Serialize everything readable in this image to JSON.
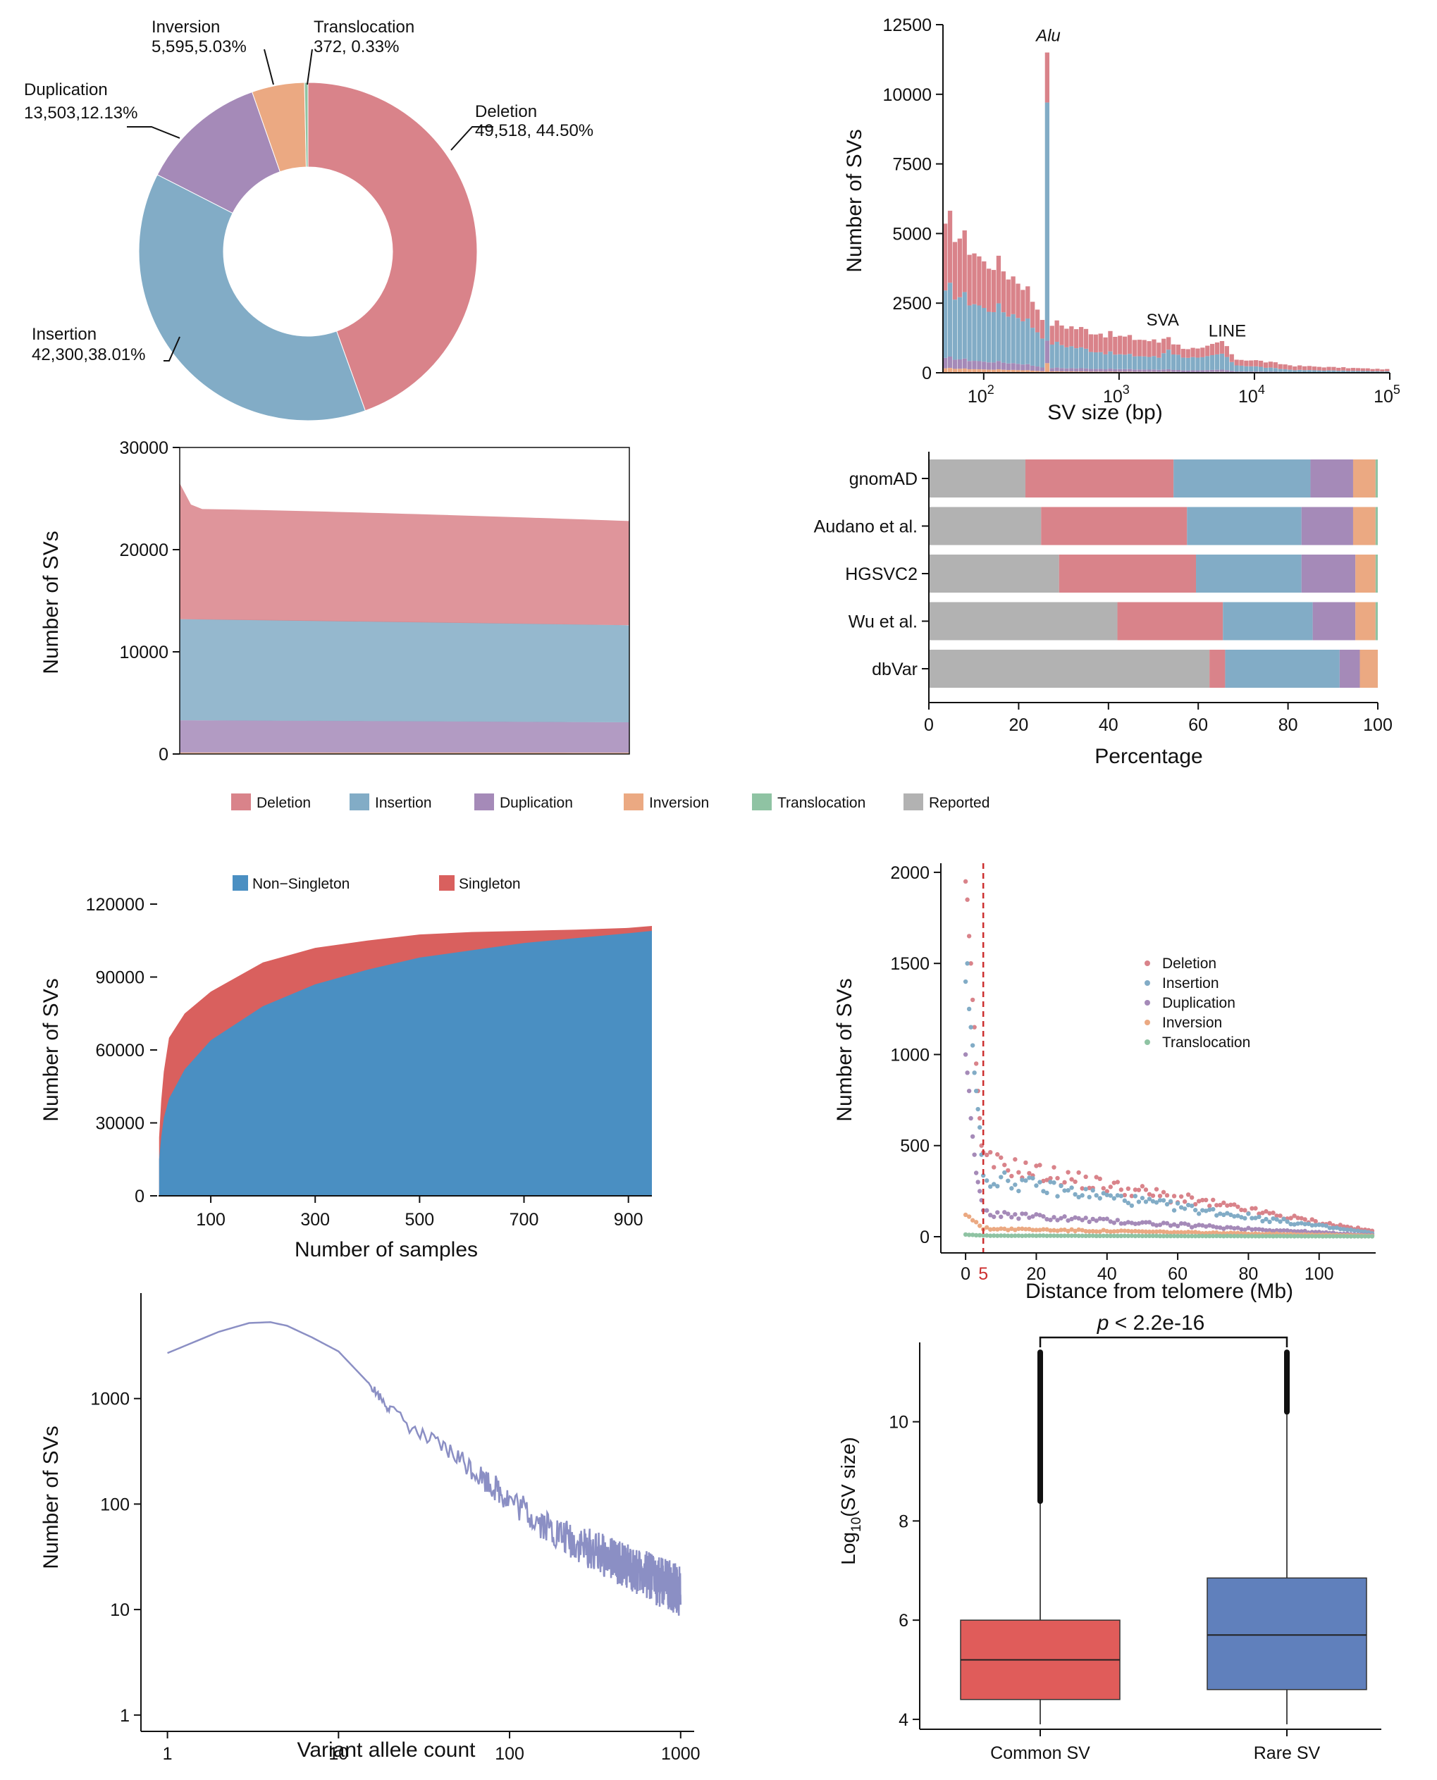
{
  "colors": {
    "deletion": "#d9838a",
    "insertion": "#82acc6",
    "duplication": "#a58ab8",
    "inversion": "#eba982",
    "translocation": "#8fc3a3",
    "reported": "#b2b2b2",
    "non_singleton": "#4a8fc2",
    "singleton": "#d9605e",
    "allele_line": "#8b8fc4",
    "common_box": "#e05c5a",
    "rare_box": "#6080bc",
    "cutoff_line": "#cc2f2f"
  },
  "legend": {
    "sv_types": [
      "Deletion",
      "Insertion",
      "Duplication",
      "Inversion",
      "Translocation",
      "Reported"
    ]
  },
  "chart_data": [
    {
      "id": "pie",
      "type": "pie",
      "style": "donut",
      "title": "",
      "slices": [
        {
          "name": "Deletion",
          "count_label": "49,518, 44.50%",
          "value": 44.5
        },
        {
          "name": "Insertion",
          "count_label": "42,300,38.01%",
          "value": 38.01
        },
        {
          "name": "Duplication",
          "count_label": "13,503,12.13%",
          "value": 12.13
        },
        {
          "name": "Inversion",
          "count_label": "5,595,5.03%",
          "value": 5.03
        },
        {
          "name": "Translocation",
          "count_label": "372, 0.33%",
          "value": 0.33
        }
      ]
    },
    {
      "id": "size-dist",
      "type": "bar",
      "stacked": true,
      "xscale": "log",
      "xlabel": "SV size (bp)",
      "ylabel": "Number of SVs",
      "xlim": [
        50,
        100000
      ],
      "ylim": [
        0,
        12500
      ],
      "yticks": [
        0,
        2500,
        5000,
        7500,
        10000,
        12500
      ],
      "xticks": [
        {
          "base": "10",
          "exp": "2"
        },
        {
          "base": "10",
          "exp": "3"
        },
        {
          "base": "10",
          "exp": "4"
        },
        {
          "base": "10",
          "exp": "5"
        }
      ],
      "annotations": [
        {
          "text": "Alu",
          "italic": true,
          "at_bp": 300,
          "at_y": 11900
        },
        {
          "text": "SVA",
          "italic": false,
          "at_bp": 2100,
          "at_y": 1700
        },
        {
          "text": "LINE",
          "italic": false,
          "at_bp": 6300,
          "at_y": 1300
        }
      ],
      "profile": {
        "bins_per_decade": 28,
        "total_anchors": [
          [
            50,
            4600
          ],
          [
            55,
            5450
          ],
          [
            60,
            5200
          ],
          [
            70,
            4800
          ],
          [
            90,
            4300
          ],
          [
            100,
            3900
          ],
          [
            120,
            4000
          ],
          [
            150,
            3600
          ],
          [
            200,
            3200
          ],
          [
            240,
            2500
          ],
          [
            280,
            2000
          ],
          [
            300,
            11500
          ],
          [
            320,
            1800
          ],
          [
            500,
            1600
          ],
          [
            1000,
            1300
          ],
          [
            1500,
            1200
          ],
          [
            2000,
            1100
          ],
          [
            2300,
            1400
          ],
          [
            2600,
            1000
          ],
          [
            4000,
            800
          ],
          [
            6000,
            1150
          ],
          [
            7000,
            500
          ],
          [
            10000,
            450
          ],
          [
            20000,
            250
          ],
          [
            100000,
            120
          ]
        ],
        "insertion_fraction_anchors": [
          [
            50,
            0.45
          ],
          [
            150,
            0.5
          ],
          [
            280,
            0.55
          ],
          [
            300,
            0.8
          ],
          [
            320,
            0.5
          ],
          [
            1000,
            0.4
          ],
          [
            2000,
            0.4
          ],
          [
            2300,
            0.55
          ],
          [
            6000,
            0.5
          ],
          [
            20000,
            0.3
          ],
          [
            100000,
            0.3
          ]
        ],
        "duplication_fraction": 0.07,
        "inversion_fraction": 0.03
      }
    },
    {
      "id": "per-sample",
      "type": "area",
      "stacked": true,
      "xlabel": "",
      "ylabel": "Number of SVs",
      "ylim": [
        0,
        30000
      ],
      "yticks": [
        0,
        10000,
        20000,
        30000
      ],
      "series": [
        {
          "name": "Inversion",
          "start": 150,
          "end": 130
        },
        {
          "name": "Duplication",
          "start": 3300,
          "end": 3100
        },
        {
          "name": "Insertion",
          "start": 13200,
          "end": 12600
        },
        {
          "name": "Deletion",
          "start": 24000,
          "end": 22800,
          "peak_start": 26500
        }
      ]
    },
    {
      "id": "database-overlap",
      "type": "bar",
      "orientation": "horizontal",
      "stacked": true,
      "xlabel": "Percentage",
      "xlim": [
        0,
        100
      ],
      "xticks": [
        0,
        20,
        40,
        60,
        80,
        100
      ],
      "categories": [
        "gnomAD",
        "Audano et al.",
        "HGSVC2",
        "Wu et al.",
        "dbVar"
      ],
      "series": [
        {
          "name": "Reported",
          "values": [
            21.5,
            25,
            29,
            42,
            62.5
          ]
        },
        {
          "name": "Deletion",
          "values": [
            33,
            32.5,
            30.5,
            23.5,
            3.5
          ]
        },
        {
          "name": "Insertion",
          "values": [
            30.5,
            25.5,
            23.5,
            20,
            25.5
          ]
        },
        {
          "name": "Duplication",
          "values": [
            9.5,
            11.5,
            12,
            9.5,
            4.5
          ]
        },
        {
          "name": "Inversion",
          "values": [
            5,
            5,
            4.5,
            4.5,
            4
          ]
        },
        {
          "name": "Translocation",
          "values": [
            0.5,
            0.5,
            0.5,
            0.5,
            0
          ]
        }
      ]
    },
    {
      "id": "discovery-curve",
      "type": "area",
      "stacked": true,
      "xlabel": "Number of samples",
      "ylabel": "Number of SVs",
      "xlim": [
        0,
        945
      ],
      "ylim": [
        0,
        120000
      ],
      "xticks": [
        100,
        300,
        500,
        700,
        900
      ],
      "yticks": [
        0,
        30000,
        60000,
        90000,
        120000
      ],
      "legend": [
        "Non−Singleton",
        "Singleton"
      ],
      "x": [
        1,
        5,
        10,
        20,
        50,
        100,
        200,
        300,
        400,
        500,
        600,
        700,
        800,
        900,
        945
      ],
      "series": [
        {
          "name": "Non−Singleton",
          "values": [
            15000,
            24000,
            32000,
            40000,
            52000,
            64000,
            78000,
            87000,
            93000,
            98000,
            101000,
            104000,
            106000,
            108000,
            109000
          ]
        },
        {
          "name": "Singleton",
          "values": [
            9000,
            15000,
            19000,
            25000,
            23000,
            20000,
            18000,
            15000,
            12000,
            9500,
            7500,
            5000,
            3500,
            2200,
            2000
          ]
        }
      ]
    },
    {
      "id": "telomere-distance",
      "type": "scatter",
      "xlabel": "Distance from telomere (Mb)",
      "ylabel": "Number of SVs",
      "xlim": [
        -7,
        116
      ],
      "ylim": [
        0,
        2050
      ],
      "xticks": [
        0,
        20,
        40,
        60,
        80,
        100
      ],
      "yticks": [
        0,
        500,
        1000,
        1500,
        2000
      ],
      "cutoff": {
        "x": 5,
        "label": "5"
      },
      "legend": [
        "Deletion",
        "Insertion",
        "Duplication",
        "Inversion",
        "Translocation"
      ],
      "series": [
        {
          "name": "Deletion",
          "near": [
            [
              0,
              1950
            ],
            [
              0.5,
              1850
            ],
            [
              1,
              1650
            ],
            [
              1.5,
              1500
            ],
            [
              2,
              1300
            ],
            [
              2.5,
              1150
            ],
            [
              3,
              950
            ],
            [
              3.5,
              800
            ],
            [
              4,
              650
            ],
            [
              4.5,
              500
            ]
          ],
          "far_start": 420,
          "far_end": 30
        },
        {
          "name": "Insertion",
          "near": [
            [
              0,
              1400
            ],
            [
              0.5,
              1500
            ],
            [
              1,
              1250
            ],
            [
              1.5,
              1150
            ],
            [
              2,
              1050
            ],
            [
              2.5,
              900
            ],
            [
              3,
              800
            ],
            [
              3.5,
              700
            ],
            [
              4,
              600
            ],
            [
              4.5,
              450
            ]
          ],
          "far_start": 330,
          "far_end": 20
        },
        {
          "name": "Duplication",
          "near": [
            [
              0,
              1000
            ],
            [
              0.5,
              900
            ],
            [
              1,
              800
            ],
            [
              1.5,
              650
            ],
            [
              2,
              550
            ],
            [
              2.5,
              450
            ],
            [
              3,
              350
            ],
            [
              3.5,
              300
            ],
            [
              4,
              250
            ],
            [
              4.5,
              200
            ]
          ],
          "far_start": 130,
          "far_end": 8
        },
        {
          "name": "Inversion",
          "near": [
            [
              0,
              120
            ],
            [
              1,
              110
            ],
            [
              2,
              90
            ],
            [
              3,
              80
            ],
            [
              4,
              60
            ]
          ],
          "far_start": 45,
          "far_end": 6
        },
        {
          "name": "Translocation",
          "near": [
            [
              0,
              12
            ],
            [
              1,
              10
            ],
            [
              2,
              10
            ],
            [
              3,
              8
            ],
            [
              4,
              8
            ]
          ],
          "far_start": 6,
          "far_end": 2
        }
      ]
    },
    {
      "id": "allele-count",
      "type": "line",
      "xscale": "log",
      "yscale": "log",
      "xlabel": "Variant allele count",
      "ylabel": "Number of SVs",
      "xlim": [
        0.7,
        1200
      ],
      "ylim": [
        0.7,
        10000
      ],
      "xticks": [
        1,
        10,
        100,
        1000
      ],
      "yticks": [
        1,
        10,
        100,
        1000
      ],
      "x": [
        1,
        2,
        3,
        4,
        5,
        7,
        10,
        15,
        20,
        30,
        50,
        100,
        200,
        500,
        1000
      ],
      "values": [
        2700,
        4300,
        5200,
        5300,
        4900,
        3800,
        2800,
        1400,
        800,
        450,
        280,
        110,
        50,
        25,
        15
      ]
    },
    {
      "id": "size-boxplot",
      "type": "box",
      "ylabel_main": "Log",
      "ylabel_sub": "10",
      "ylabel_rest": "(SV size)",
      "ylim": [
        3.8,
        11.6
      ],
      "yticks": [
        4,
        6,
        8,
        10
      ],
      "categories": [
        "Common SV",
        "Rare SV"
      ],
      "boxes": [
        {
          "name": "Common SV",
          "min": 3.9,
          "q1": 4.4,
          "median": 5.2,
          "q3": 6.0,
          "max": 8.4,
          "outlier_top": 11.4
        },
        {
          "name": "Rare SV",
          "min": 3.9,
          "q1": 4.6,
          "median": 5.7,
          "q3": 6.85,
          "max": 10.2,
          "outlier_top": 11.4
        }
      ],
      "pvalue": {
        "prefix": "p",
        "text": " < 2.2e-16"
      }
    }
  ]
}
